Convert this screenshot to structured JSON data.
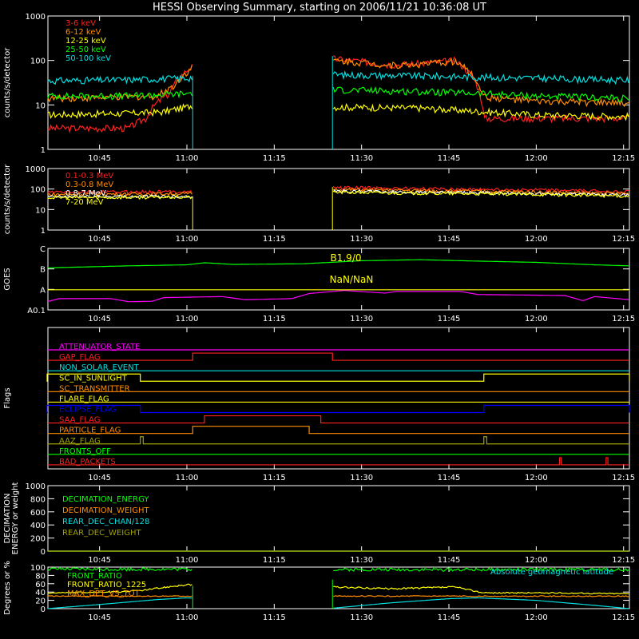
{
  "title": "HESSI Observing Summary, starting on 2006/11/21 10:36:08 UT",
  "time_axis": {
    "start": "10:36:08",
    "end": "12:16",
    "ticks": [
      "10:45",
      "11:00",
      "11:15",
      "11:30",
      "11:45",
      "12:00",
      "12:15"
    ]
  },
  "colors": {
    "background": "#000000",
    "axes": "#ffffff",
    "red": "#ff2020",
    "orange": "#ff8c00",
    "yellow": "#ffff00",
    "green": "#00ff00",
    "cyan": "#00e0e0",
    "magenta": "#ff00ff",
    "blue": "#0000ff",
    "olive": "#a0a000",
    "white": "#ffffff"
  },
  "chart_data": [
    {
      "id": "panel-lowenergy",
      "type": "line",
      "ylabel": "counts/s/detector",
      "ylog": true,
      "yticks": [
        "1",
        "10",
        "100",
        "1000"
      ],
      "ylim": [
        1,
        1000
      ],
      "gaps": [
        [
          "11:01",
          "11:25"
        ]
      ],
      "series": [
        {
          "name": "3-6 keV",
          "color": "red",
          "values": [
            [
              "10:36",
              3
            ],
            [
              "10:50",
              3
            ],
            [
              "10:53",
              5
            ],
            [
              "10:57",
              18
            ],
            [
              "10:59",
              45
            ],
            [
              "11:01",
              75
            ],
            [
              "11:25",
              110
            ],
            [
              "11:30",
              95
            ],
            [
              "11:35",
              80
            ],
            [
              "11:40",
              85
            ],
            [
              "11:46",
              100
            ],
            [
              "11:51",
              5
            ],
            [
              "12:00",
              5
            ],
            [
              "12:16",
              5
            ]
          ]
        },
        {
          "name": "6-12 keV",
          "color": "orange",
          "values": [
            [
              "10:36",
              14
            ],
            [
              "10:50",
              15
            ],
            [
              "10:55",
              16
            ],
            [
              "10:58",
              28
            ],
            [
              "11:00",
              55
            ],
            [
              "11:01",
              70
            ],
            [
              "11:25",
              100
            ],
            [
              "11:30",
              90
            ],
            [
              "11:35",
              78
            ],
            [
              "11:40",
              82
            ],
            [
              "11:46",
              95
            ],
            [
              "11:51",
              15
            ],
            [
              "12:00",
              12
            ],
            [
              "12:16",
              11
            ]
          ]
        },
        {
          "name": "12-25 keV",
          "color": "yellow",
          "values": [
            [
              "10:36",
              6
            ],
            [
              "10:50",
              6.5
            ],
            [
              "10:56",
              7
            ],
            [
              "11:00",
              9
            ],
            [
              "11:01",
              10
            ],
            [
              "11:25",
              9
            ],
            [
              "11:40",
              8.5
            ],
            [
              "11:51",
              7
            ],
            [
              "12:00",
              6
            ],
            [
              "12:16",
              5.5
            ]
          ]
        },
        {
          "name": "25-50 keV",
          "color": "green",
          "values": [
            [
              "10:36",
              16
            ],
            [
              "10:50",
              16
            ],
            [
              "11:00",
              18
            ],
            [
              "11:01",
              19
            ],
            [
              "11:25",
              22
            ],
            [
              "11:40",
              20
            ],
            [
              "11:51",
              18
            ],
            [
              "12:00",
              16
            ],
            [
              "12:16",
              14
            ]
          ]
        },
        {
          "name": "50-100 keV",
          "color": "cyan",
          "values": [
            [
              "10:36",
              35
            ],
            [
              "10:50",
              37
            ],
            [
              "11:00",
              40
            ],
            [
              "11:01",
              42
            ],
            [
              "11:25",
              48
            ],
            [
              "11:40",
              45
            ],
            [
              "11:51",
              42
            ],
            [
              "12:00",
              40
            ],
            [
              "12:16",
              36
            ]
          ]
        }
      ]
    },
    {
      "id": "panel-highenergy",
      "type": "line",
      "ylabel": "counts/s/detector",
      "ylog": true,
      "yticks": [
        "1",
        "10",
        "100",
        "1000"
      ],
      "ylim": [
        1,
        1000
      ],
      "gaps": [
        [
          "11:01",
          "11:25"
        ]
      ],
      "series": [
        {
          "name": "0.1-0.3 MeV",
          "color": "red",
          "values": [
            [
              "10:36",
              70
            ],
            [
              "11:01",
              75
            ],
            [
              "11:25",
              120
            ],
            [
              "11:40",
              105
            ],
            [
              "12:00",
              90
            ],
            [
              "12:16",
              75
            ]
          ]
        },
        {
          "name": "0.3-0.8 MeV",
          "color": "orange",
          "values": [
            [
              "10:36",
              55
            ],
            [
              "11:01",
              60
            ],
            [
              "11:25",
              95
            ],
            [
              "11:40",
              85
            ],
            [
              "12:00",
              72
            ],
            [
              "12:16",
              60
            ]
          ]
        },
        {
          "name": "0.8-7 MeV",
          "color": "white",
          "values": [
            [
              "10:36",
              42
            ],
            [
              "11:01",
              45
            ],
            [
              "11:25",
              80
            ],
            [
              "11:40",
              70
            ],
            [
              "12:00",
              60
            ],
            [
              "12:16",
              50
            ]
          ]
        },
        {
          "name": "7-20 MeV",
          "color": "yellow",
          "values": [
            [
              "10:36",
              38
            ],
            [
              "11:01",
              40
            ],
            [
              "11:25",
              70
            ],
            [
              "11:40",
              62
            ],
            [
              "12:00",
              55
            ],
            [
              "12:16",
              45
            ]
          ]
        }
      ]
    },
    {
      "id": "panel-goes",
      "type": "line",
      "ylabel": "GOES",
      "yticks": [
        "A0.1",
        "A",
        "B",
        "C"
      ],
      "ylim": [
        0,
        3
      ],
      "annotations": [
        "B1.9/0",
        "NaN/NaN"
      ],
      "series": [
        {
          "color": "green",
          "values": [
            [
              "10:36",
              2.05
            ],
            [
              "10:50",
              2.15
            ],
            [
              "11:00",
              2.2
            ],
            [
              "11:03",
              2.3
            ],
            [
              "11:08",
              2.22
            ],
            [
              "11:20",
              2.25
            ],
            [
              "11:30",
              2.4
            ],
            [
              "11:40",
              2.45
            ],
            [
              "11:50",
              2.38
            ],
            [
              "12:00",
              2.32
            ],
            [
              "12:10",
              2.2
            ],
            [
              "12:16",
              2.15
            ]
          ]
        },
        {
          "color": "magenta",
          "values": [
            [
              "10:36",
              0.4
            ],
            [
              "10:38",
              0.55
            ],
            [
              "10:47",
              0.55
            ],
            [
              "10:50",
              0.4
            ],
            [
              "10:54",
              0.42
            ],
            [
              "10:56",
              0.6
            ],
            [
              "11:06",
              0.65
            ],
            [
              "11:10",
              0.5
            ],
            [
              "11:18",
              0.55
            ],
            [
              "11:21",
              0.8
            ],
            [
              "11:27",
              0.95
            ],
            [
              "11:34",
              0.82
            ],
            [
              "11:36",
              0.9
            ],
            [
              "11:47",
              0.9
            ],
            [
              "11:50",
              0.75
            ],
            [
              "12:00",
              0.72
            ],
            [
              "12:05",
              0.7
            ],
            [
              "12:08",
              0.45
            ],
            [
              "12:10",
              0.65
            ],
            [
              "12:16",
              0.5
            ]
          ]
        },
        {
          "color": "yellow",
          "values": [
            [
              "11:21",
              0.98
            ],
            [
              "11:28",
              0.98
            ]
          ]
        }
      ]
    },
    {
      "id": "panel-flags",
      "type": "line",
      "ylabel": "Flags",
      "flags": [
        {
          "name": "ATTENUATOR_STATE",
          "color": "magenta",
          "segments": []
        },
        {
          "name": "GAP_FLAG",
          "color": "red",
          "segments": [
            [
              "11:01",
              "11:25"
            ]
          ]
        },
        {
          "name": "NON_SOLAR_EVENT",
          "color": "cyan",
          "segments": []
        },
        {
          "name": "SC_IN_SUNLIGHT",
          "color": "yellow",
          "segments": [
            [
              "10:36",
              "10:52"
            ],
            [
              "11:51",
              "12:16"
            ]
          ]
        },
        {
          "name": "SC_TRANSMITTER",
          "color": "orange",
          "segments": []
        },
        {
          "name": "FLARE_FLAG",
          "color": "yellow",
          "segments": []
        },
        {
          "name": "ECLIPSE_FLAG",
          "color": "blue",
          "segments": [
            [
              "10:36",
              "10:52"
            ],
            [
              "11:51",
              "12:16"
            ]
          ]
        },
        {
          "name": "SAA_FLAG",
          "color": "red",
          "segments": [
            [
              "11:03",
              "11:23"
            ]
          ]
        },
        {
          "name": "PARTICLE_FLAG",
          "color": "orange",
          "segments": [
            [
              "11:01",
              "11:21"
            ]
          ]
        },
        {
          "name": "AAZ_FLAG",
          "color": "olive",
          "segments": [
            [
              "10:52",
              "10:52.5"
            ],
            [
              "11:51",
              "11:51.5"
            ]
          ]
        },
        {
          "name": "FRONTS_OFF",
          "color": "green",
          "segments": []
        },
        {
          "name": "BAD_PACKETS",
          "color": "red",
          "segments": [
            [
              "12:04",
              "12:04.3"
            ],
            [
              "12:12",
              "12:12.3"
            ]
          ]
        }
      ]
    },
    {
      "id": "panel-decimation",
      "type": "line",
      "ylabel": "DECIMATION ENERGY or weight",
      "yticks": [
        "0",
        "200",
        "400",
        "600",
        "800",
        "1000"
      ],
      "ylim": [
        0,
        1000
      ],
      "series": [
        {
          "name": "DECIMATION_ENERGY",
          "color": "green",
          "values": [
            [
              "10:36",
              0
            ],
            [
              "12:16",
              0
            ]
          ]
        },
        {
          "name": "DECIMATION_WEIGHT",
          "color": "orange",
          "values": [
            [
              "10:36",
              0
            ],
            [
              "12:16",
              0
            ]
          ]
        },
        {
          "name": "REAR_DEC_CHAN/128",
          "color": "cyan",
          "values": [
            [
              "10:36",
              0
            ],
            [
              "12:16",
              0
            ]
          ]
        },
        {
          "name": "REAR_DEC_WEIGHT",
          "color": "olive",
          "values": [
            [
              "10:36",
              0
            ],
            [
              "12:16",
              0
            ]
          ]
        }
      ]
    },
    {
      "id": "panel-ratio",
      "type": "line",
      "ylabel": "Degrees or %",
      "yticks": [
        "0",
        "20",
        "40",
        "60",
        "80",
        "100"
      ],
      "ylim": [
        0,
        100
      ],
      "gaps": [
        [
          "11:01",
          "11:25"
        ]
      ],
      "right_label": "Absolute geomagnetic latitude",
      "series": [
        {
          "name": "FRONT_RATIO",
          "color": "green",
          "values": [
            [
              "10:36",
              95
            ],
            [
              "11:01",
              95
            ],
            [
              "11:25",
              94
            ],
            [
              "12:16",
              94
            ]
          ]
        },
        {
          "name": "FRONT_RATIO_1225",
          "color": "yellow",
          "values": [
            [
              "10:36",
              38
            ],
            [
              "10:48",
              40
            ],
            [
              "10:53",
              45
            ],
            [
              "10:58",
              55
            ],
            [
              "11:01",
              58
            ],
            [
              "11:25",
              52
            ],
            [
              "11:35",
              48
            ],
            [
              "11:46",
              52
            ],
            [
              "11:51",
              38
            ],
            [
              "12:00",
              38
            ],
            [
              "12:16",
              36
            ]
          ]
        },
        {
          "name": "MAX_DET_VS_TOT",
          "color": "orange",
          "values": [
            [
              "10:36",
              30
            ],
            [
              "11:01",
              30
            ],
            [
              "11:25",
              30
            ],
            [
              "12:16",
              30
            ]
          ]
        },
        {
          "color": "cyan",
          "values": [
            [
              "10:36",
              0
            ],
            [
              "10:45",
              10
            ],
            [
              "10:55",
              22
            ],
            [
              "11:00",
              26
            ],
            [
              "11:05",
              24
            ],
            [
              "11:15",
              12
            ],
            [
              "11:25",
              1
            ],
            [
              "11:35",
              14
            ],
            [
              "11:45",
              24
            ],
            [
              "11:50",
              26
            ],
            [
              "12:00",
              20
            ],
            [
              "12:10",
              8
            ],
            [
              "12:16",
              0
            ]
          ]
        }
      ]
    }
  ]
}
